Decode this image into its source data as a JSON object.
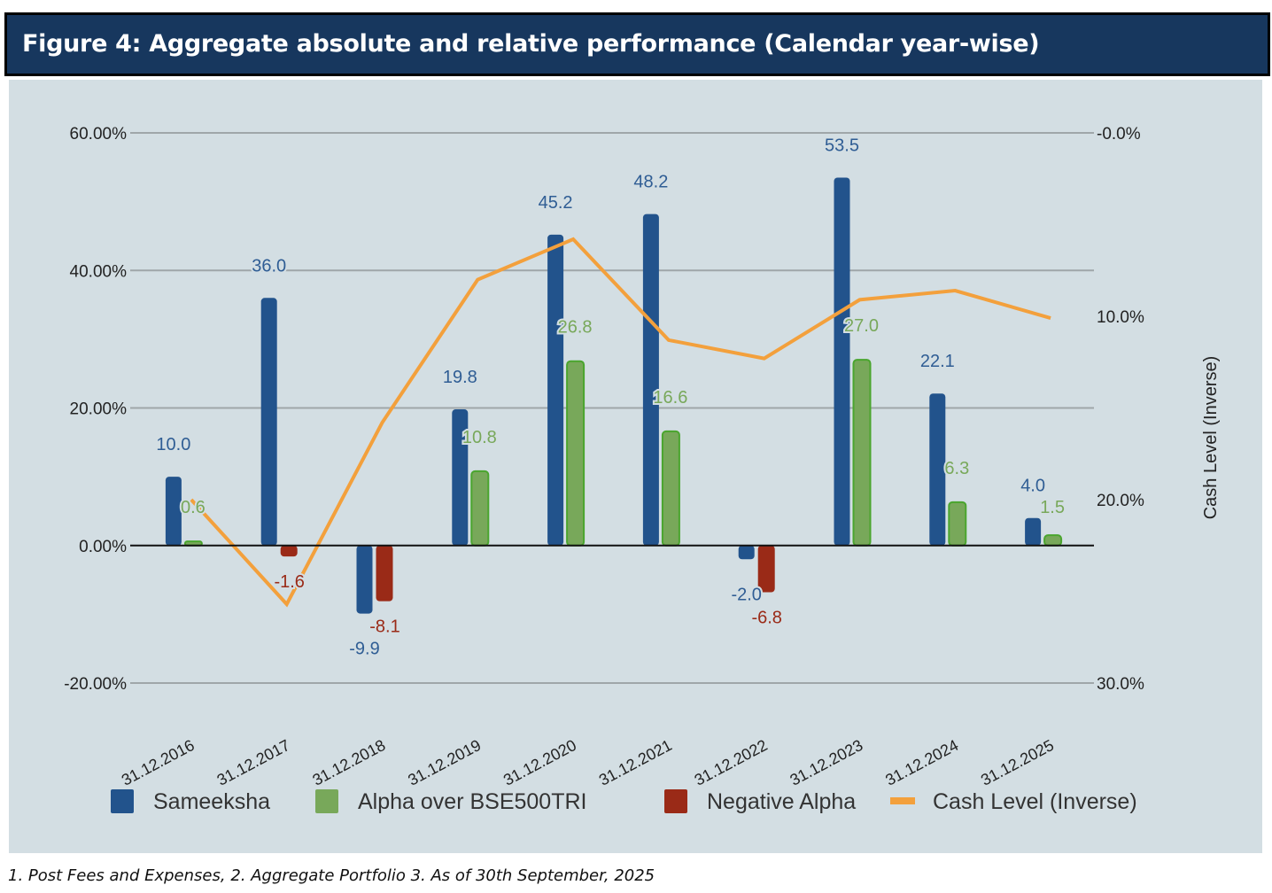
{
  "header": {
    "title": "Figure 4:  Aggregate absolute and relative performance (Calendar year-wise)"
  },
  "footnote": "1. Post Fees and Expenses, 2. Aggregate Portfolio  3. As of 30th September, 2025",
  "chart_data": {
    "type": "bar",
    "title": "Figure 4:  Aggregate absolute and relative performance (Calendar year-wise)",
    "categories": [
      "31.12.2016",
      "31.12.2017",
      "31.12.2018",
      "31.12.2019",
      "31.12.2020",
      "31.12.2021",
      "31.12.2022",
      "31.12.2023",
      "31.12.2024",
      "31.12.2025"
    ],
    "series": [
      {
        "name": "Sameeksha",
        "type": "bar",
        "axis": "left",
        "color": "#22538c",
        "values": [
          10.0,
          36.0,
          -9.9,
          19.8,
          45.2,
          48.2,
          -2.0,
          53.5,
          22.1,
          4.0
        ],
        "labels": [
          "10.0",
          "36.0",
          "-9.9",
          "19.8",
          "45.2",
          "48.2",
          "-2.0",
          "53.5",
          "22.1",
          "4.0"
        ]
      },
      {
        "name": "Alpha over BSE500TRI",
        "type": "bar",
        "axis": "left",
        "color": "#78a85a",
        "values": [
          0.6,
          null,
          null,
          10.8,
          26.8,
          16.6,
          null,
          27.0,
          6.3,
          1.5
        ],
        "labels": [
          "0.6",
          null,
          null,
          "10.8",
          "26.8",
          "16.6",
          null,
          "27.0",
          "6.3",
          "1.5"
        ]
      },
      {
        "name": "Negative Alpha",
        "type": "bar",
        "axis": "left",
        "color": "#9a2a17",
        "values": [
          null,
          -1.6,
          -8.1,
          null,
          null,
          null,
          -6.8,
          null,
          null,
          null
        ],
        "labels": [
          null,
          "-1.6",
          "-8.1",
          null,
          null,
          null,
          "-6.8",
          null,
          null,
          null
        ]
      },
      {
        "name": "Cash Level (Inverse)",
        "type": "line",
        "axis": "right",
        "color": "#f3a03c",
        "values": [
          20.0,
          25.7,
          15.8,
          8.0,
          5.8,
          11.3,
          12.3,
          9.1,
          8.6,
          10.1
        ]
      }
    ],
    "y_left": {
      "label": "",
      "ylim": [
        -20,
        60
      ],
      "ticks": [
        -20,
        0,
        20,
        40,
        60
      ],
      "tick_labels": [
        "-20.00%",
        "0.00%",
        "20.00%",
        "40.00%",
        "60.00%"
      ]
    },
    "y_right": {
      "label": "Cash Level (Inverse)",
      "ylim": [
        0,
        30
      ],
      "inverted": true,
      "ticks": [
        0,
        10,
        20,
        30
      ],
      "tick_labels": [
        "-0.0%",
        "10.0%",
        "20.0%",
        "30.0%"
      ]
    },
    "xlabel": "",
    "grid": true,
    "legend": {
      "position": "bottom",
      "entries": [
        "Sameeksha",
        "Alpha over BSE500TRI",
        "Negative Alpha",
        "Cash Level (Inverse)"
      ]
    }
  }
}
